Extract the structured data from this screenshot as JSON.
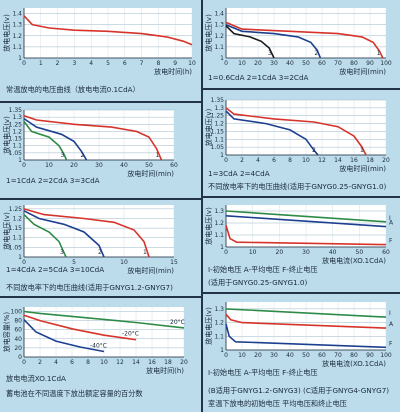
{
  "chart_data": [
    {
      "type": "line",
      "ylabel": "放电电压(v)",
      "xlabel": "放电时间(h)",
      "caption": "常温放电的电压曲线（放电电流0.1CdA）",
      "xticks": [
        0,
        1,
        2,
        3,
        4,
        5,
        6,
        7,
        8,
        9,
        10
      ],
      "yticks": [
        1.0,
        1.1,
        1.2,
        1.3,
        1.4
      ],
      "xlim": [
        0,
        10
      ],
      "ylim": [
        1.0,
        1.45
      ],
      "series": [
        {
          "color": "#d6332a",
          "points": [
            [
              0,
              1.38
            ],
            [
              0.5,
              1.3
            ],
            [
              1.5,
              1.27
            ],
            [
              3,
              1.25
            ],
            [
              5,
              1.24
            ],
            [
              7,
              1.22
            ],
            [
              8.5,
              1.19
            ],
            [
              9.5,
              1.15
            ],
            [
              10,
              1.12
            ]
          ]
        }
      ]
    },
    {
      "type": "line",
      "ylabel": "放电电压(v)",
      "xlabel": "放电时间(min)",
      "caption": "1=0.6CdA  2=1CdA  3=2CdA",
      "xticks": [
        0,
        10,
        20,
        30,
        40,
        50,
        60,
        70,
        80,
        90,
        100
      ],
      "yticks": [
        1.0,
        1.1,
        1.2,
        1.3,
        1.4
      ],
      "xlim": [
        0,
        100
      ],
      "ylim": [
        1.0,
        1.45
      ],
      "series": [
        {
          "name": "1",
          "color": "#d6332a",
          "points": [
            [
              0,
              1.32
            ],
            [
              10,
              1.26
            ],
            [
              40,
              1.24
            ],
            [
              70,
              1.22
            ],
            [
              85,
              1.19
            ],
            [
              92,
              1.14
            ],
            [
              96,
              1.06
            ],
            [
              98,
              1.0
            ]
          ]
        },
        {
          "name": "2",
          "color": "#1d3f8f",
          "points": [
            [
              0,
              1.3
            ],
            [
              10,
              1.24
            ],
            [
              30,
              1.22
            ],
            [
              45,
              1.19
            ],
            [
              53,
              1.14
            ],
            [
              57,
              1.07
            ],
            [
              59,
              1.0
            ]
          ]
        },
        {
          "name": "3",
          "color": "#1c1c1c",
          "points": [
            [
              0,
              1.29
            ],
            [
              5,
              1.22
            ],
            [
              15,
              1.19
            ],
            [
              22,
              1.15
            ],
            [
              27,
              1.09
            ],
            [
              30,
              1.0
            ]
          ]
        }
      ]
    },
    {
      "type": "line",
      "ylabel": "放电电压(v)",
      "xlabel": "放电时间(min)",
      "caption": "1=1CdA  2=2CdA  3=3CdA",
      "xticks": [
        0,
        10,
        20,
        30,
        40,
        50,
        60
      ],
      "yticks": [
        1.0,
        1.05,
        1.1,
        1.15,
        1.2,
        1.25,
        1.3,
        1.35
      ],
      "xlim": [
        0,
        60
      ],
      "ylim": [
        1.0,
        1.35
      ],
      "series": [
        {
          "name": "1",
          "color": "#d6332a",
          "points": [
            [
              0,
              1.31
            ],
            [
              5,
              1.28
            ],
            [
              20,
              1.25
            ],
            [
              35,
              1.23
            ],
            [
              45,
              1.2
            ],
            [
              50,
              1.16
            ],
            [
              53,
              1.08
            ],
            [
              55,
              1.0
            ]
          ]
        },
        {
          "name": "2",
          "color": "#1d3f8f",
          "points": [
            [
              0,
              1.29
            ],
            [
              5,
              1.23
            ],
            [
              15,
              1.18
            ],
            [
              20,
              1.13
            ],
            [
              23,
              1.06
            ],
            [
              25,
              1.0
            ]
          ]
        },
        {
          "name": "3",
          "color": "#2e8b47",
          "points": [
            [
              0,
              1.27
            ],
            [
              3,
              1.2
            ],
            [
              10,
              1.16
            ],
            [
              14,
              1.1
            ],
            [
              16,
              1.04
            ],
            [
              17,
              1.0
            ]
          ]
        }
      ]
    },
    {
      "type": "line",
      "ylabel": "放电电压(v)",
      "xlabel": "放电时间(min)",
      "caption": "1=3CdA  2=4CdA",
      "title": "不同放电率下的电压曲线(适用于GNYG0.25-GNYG1.0)",
      "xticks": [
        0,
        2,
        4,
        6,
        8,
        10,
        12,
        14,
        16,
        18,
        20
      ],
      "yticks": [
        1.0,
        1.05,
        1.1,
        1.15,
        1.2,
        1.25,
        1.3,
        1.35
      ],
      "xlim": [
        0,
        20
      ],
      "ylim": [
        1.0,
        1.35
      ],
      "series": [
        {
          "name": "1",
          "color": "#d6332a",
          "points": [
            [
              0,
              1.3
            ],
            [
              1,
              1.26
            ],
            [
              6,
              1.23
            ],
            [
              11,
              1.21
            ],
            [
              14,
              1.18
            ],
            [
              16,
              1.12
            ],
            [
              17,
              1.05
            ],
            [
              17.5,
              1.0
            ]
          ]
        },
        {
          "name": "2",
          "color": "#1d3f8f",
          "points": [
            [
              0,
              1.28
            ],
            [
              1,
              1.23
            ],
            [
              5,
              1.2
            ],
            [
              8,
              1.16
            ],
            [
              10,
              1.1
            ],
            [
              11,
              1.03
            ],
            [
              11.5,
              1.0
            ]
          ]
        }
      ]
    },
    {
      "type": "line",
      "ylabel": "放电电压(v)",
      "xlabel": "放电时间(min)",
      "caption": "1=4CdA  2=5CdA  3=10CdA",
      "title": "不同放电率下的电压曲线(适用于GNYG1.2-GNYG7)",
      "xticks": [
        0,
        5,
        10,
        15
      ],
      "yticks": [
        1.0,
        1.05,
        1.1,
        1.15,
        1.2,
        1.25
      ],
      "xlim": [
        0,
        15
      ],
      "ylim": [
        1.0,
        1.27
      ],
      "series": [
        {
          "name": "1",
          "color": "#d6332a",
          "points": [
            [
              0,
              1.25
            ],
            [
              2,
              1.22
            ],
            [
              6,
              1.2
            ],
            [
              9,
              1.18
            ],
            [
              11,
              1.14
            ],
            [
              12,
              1.08
            ],
            [
              12.5,
              1.0
            ]
          ]
        },
        {
          "name": "2",
          "color": "#1d3f8f",
          "points": [
            [
              0,
              1.24
            ],
            [
              1.5,
              1.2
            ],
            [
              4,
              1.17
            ],
            [
              6,
              1.13
            ],
            [
              7.5,
              1.06
            ],
            [
              8,
              1.0
            ]
          ]
        },
        {
          "name": "3",
          "color": "#2e8b47",
          "points": [
            [
              0,
              1.22
            ],
            [
              1,
              1.17
            ],
            [
              2.5,
              1.13
            ],
            [
              3.5,
              1.08
            ],
            [
              4.2,
              1.0
            ]
          ]
        }
      ]
    },
    {
      "type": "line",
      "ylabel": "放电电压(v)",
      "xlabel": "放电电流(XO.1CdA)",
      "caption": "I-初始电压 A-平均电压 F-终止电压",
      "title": "(适用于GNYG0.25-GNYG1.0)",
      "xticks": [
        0,
        10,
        20,
        30,
        40,
        50,
        60
      ],
      "yticks": [
        1.0,
        1.1,
        1.2,
        1.3
      ],
      "xlim": [
        0,
        60
      ],
      "ylim": [
        1.0,
        1.35
      ],
      "series": [
        {
          "name": "I",
          "color": "#2e8b47",
          "points": [
            [
              0,
              1.3
            ],
            [
              60,
              1.21
            ]
          ]
        },
        {
          "name": "A",
          "color": "#1d3f8f",
          "points": [
            [
              0,
              1.26
            ],
            [
              60,
              1.17
            ]
          ]
        },
        {
          "name": "F",
          "color": "#d6332a",
          "points": [
            [
              0,
              1.18
            ],
            [
              1.5,
              1.07
            ],
            [
              4,
              1.04
            ],
            [
              60,
              1.02
            ]
          ]
        }
      ]
    },
    {
      "type": "line",
      "ylabel": "放电容量(%)",
      "xlabel": "放电时间(h)",
      "caption": "放电电流XO.1CdA",
      "title": "蓄电池在不同温度下放出额定容量的百分数",
      "xticks": [
        0,
        2,
        4,
        6,
        8,
        10,
        12,
        14,
        16,
        18,
        20
      ],
      "yticks": [
        0,
        20,
        40,
        60,
        80,
        100
      ],
      "xlim": [
        0,
        20
      ],
      "ylim": [
        0,
        110
      ],
      "series": [
        {
          "name": "20°C",
          "color": "#2e8b47",
          "points": [
            [
              0,
              100
            ],
            [
              2,
              96
            ],
            [
              8,
              86
            ],
            [
              14,
              76
            ],
            [
              20,
              64
            ]
          ]
        },
        {
          "name": "-20°C",
          "color": "#d6332a",
          "points": [
            [
              0,
              92
            ],
            [
              2,
              80
            ],
            [
              6,
              62
            ],
            [
              10,
              48
            ],
            [
              14,
              38
            ]
          ]
        },
        {
          "name": "-40°C",
          "color": "#1d3f8f",
          "points": [
            [
              0,
              82
            ],
            [
              1.5,
              55
            ],
            [
              4,
              35
            ],
            [
              7,
              22
            ],
            [
              10,
              12
            ]
          ]
        }
      ]
    },
    {
      "type": "line",
      "ylabel": "放电电压(v)",
      "xlabel": "放电电流(XO.1CdA)",
      "caption": "I-初始电压 A-平均电压 F-终止电压",
      "title": "(B适用于GNYG1.2-GNYG3) (C适用于GNYG4-GNYG7)",
      "footer": "室温下放电的初始电压 平均电压和终止电压",
      "xticks": [
        0,
        10,
        20,
        30,
        40,
        50,
        60,
        70,
        80,
        90,
        100
      ],
      "yticks": [
        1.0,
        1.1,
        1.2,
        1.3
      ],
      "xlim": [
        0,
        100
      ],
      "ylim": [
        1.0,
        1.35
      ],
      "series": [
        {
          "name": "I",
          "color": "#2e8b47",
          "points": [
            [
              0,
              1.3
            ],
            [
              100,
              1.24
            ]
          ]
        },
        {
          "name": "A",
          "color": "#d6332a",
          "points": [
            [
              0,
              1.26
            ],
            [
              3,
              1.22
            ],
            [
              10,
              1.2
            ],
            [
              100,
              1.16
            ]
          ]
        },
        {
          "name": "F",
          "color": "#1d3f8f",
          "points": [
            [
              0,
              1.19
            ],
            [
              2,
              1.1
            ],
            [
              6,
              1.06
            ],
            [
              100,
              1.02
            ]
          ]
        }
      ]
    }
  ]
}
